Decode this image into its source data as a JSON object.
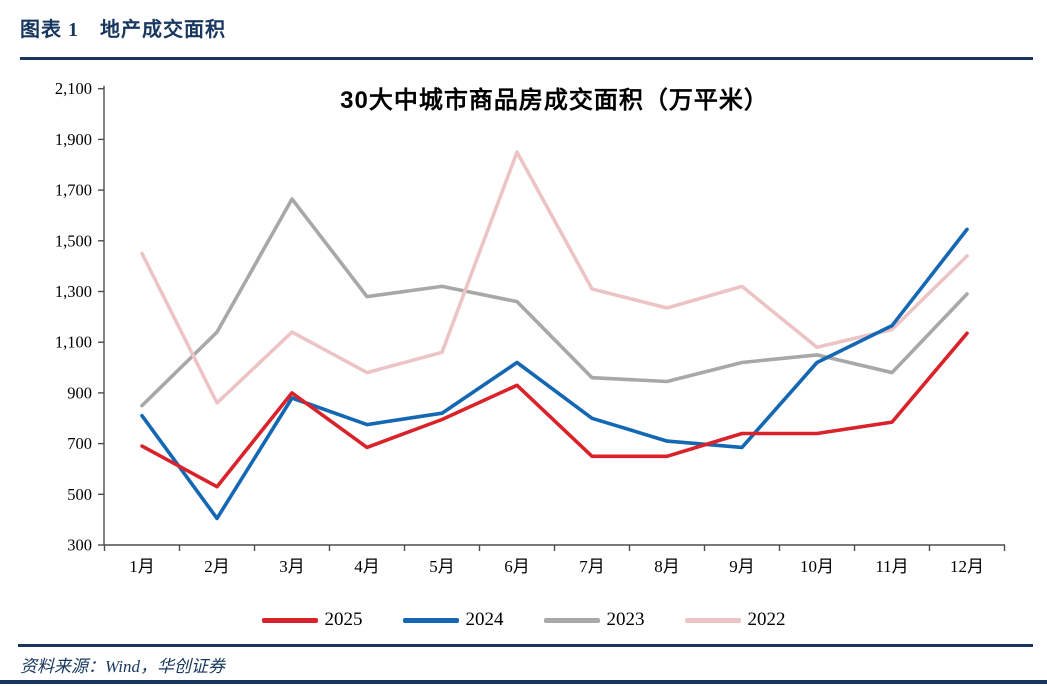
{
  "header": {
    "title": "图表 1　地产成交面积"
  },
  "footer": {
    "source": "资料来源：Wind，华创证券"
  },
  "colors": {
    "accent": "#17375E",
    "axis": "#4D4D4D",
    "text": "#000000"
  },
  "chart_data": {
    "type": "line",
    "title": "30大中城市商品房成交面积（万平米）",
    "categories": [
      "1月",
      "2月",
      "3月",
      "4月",
      "5月",
      "6月",
      "7月",
      "8月",
      "9月",
      "10月",
      "11月",
      "12月"
    ],
    "series": [
      {
        "name": "2025",
        "color": "#D9222A",
        "values": [
          690,
          530,
          900,
          685,
          795,
          930,
          650,
          650,
          740,
          740,
          785,
          1135
        ]
      },
      {
        "name": "2024",
        "color": "#1467B3",
        "values": [
          810,
          405,
          880,
          775,
          820,
          1020,
          800,
          710,
          685,
          1020,
          1165,
          1545
        ]
      },
      {
        "name": "2023",
        "color": "#A8A8A8",
        "values": [
          850,
          1140,
          1665,
          1280,
          1320,
          1260,
          960,
          945,
          1020,
          1050,
          980,
          1290
        ]
      },
      {
        "name": "2022",
        "color": "#EDC4C5",
        "values": [
          1450,
          860,
          1140,
          980,
          1060,
          1850,
          1310,
          1235,
          1320,
          1080,
          1150,
          1440
        ]
      }
    ],
    "draw_order": [
      "2023",
      "2022",
      "2024",
      "2025"
    ],
    "ylim": [
      300,
      2100
    ],
    "ytick_step": 200,
    "ytick_labels": [
      "300",
      "500",
      "700",
      "900",
      "1,100",
      "1,300",
      "1,500",
      "1,700",
      "1,900",
      "2,100"
    ],
    "xlabel": "",
    "ylabel": "",
    "grid": false,
    "legend_position": "bottom"
  }
}
